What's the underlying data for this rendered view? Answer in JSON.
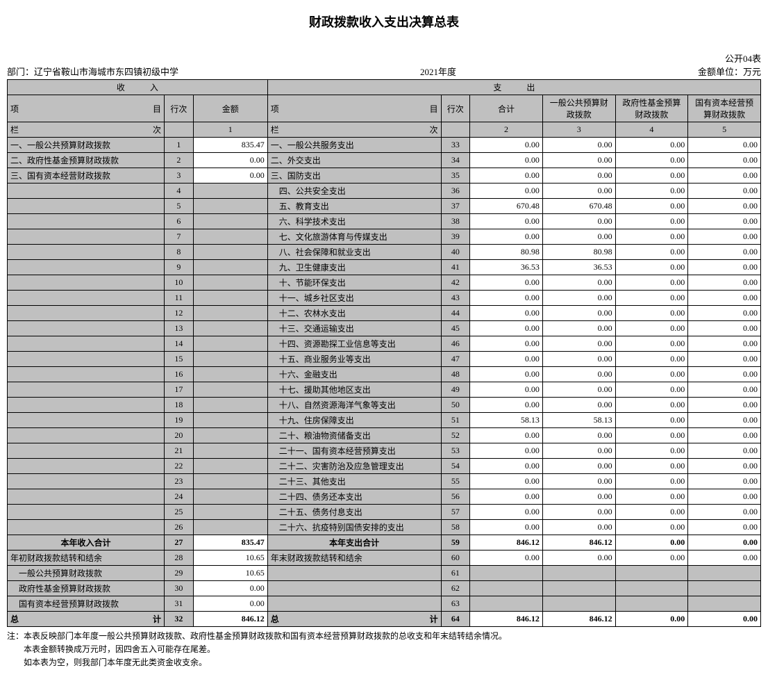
{
  "title": "财政拨款收入支出决算总表",
  "form_no": "公开04表",
  "dept_label": "部门：",
  "dept": "辽宁省鞍山市海城市东四镇初级中学",
  "year": "2021年度",
  "unit": "金额单位：万元",
  "headers": {
    "income": "收　　　入",
    "expense": "支　　　出",
    "item": "项　　　　　　　　目",
    "row": "行次",
    "amount": "金额",
    "total": "合计",
    "col3": "一般公共预算财政拨款",
    "col4": "政府性基金预算财政拨款",
    "col5": "国有资本经营预算财政拨款",
    "lan_l": "栏　　　　　　　　次",
    "lan_r": "栏　　　　　　　　次",
    "c1": "1",
    "c2": "2",
    "c3": "3",
    "c4": "4",
    "c5": "5"
  },
  "rows": [
    {
      "inc": "一、一般公共预算财政拨款",
      "irow": "1",
      "amt": "835.47",
      "exp": "一、一般公共服务支出",
      "erow": "33",
      "v": [
        "0.00",
        "0.00",
        "0.00",
        "0.00"
      ],
      "ig": true,
      "eg": true
    },
    {
      "inc": "二、政府性基金预算财政拨款",
      "irow": "2",
      "amt": "0.00",
      "exp": "二、外交支出",
      "erow": "34",
      "v": [
        "0.00",
        "0.00",
        "0.00",
        "0.00"
      ],
      "ig": true,
      "eg": true
    },
    {
      "inc": "三、国有资本经营财政拨款",
      "irow": "3",
      "amt": "0.00",
      "exp": "三、国防支出",
      "erow": "35",
      "v": [
        "0.00",
        "0.00",
        "0.00",
        "0.00"
      ],
      "ig": true,
      "eg": true
    },
    {
      "inc": "",
      "irow": "4",
      "amt": "",
      "exp": "　四、公共安全支出",
      "erow": "36",
      "v": [
        "0.00",
        "0.00",
        "0.00",
        "0.00"
      ],
      "ig": true,
      "eg": true
    },
    {
      "inc": "",
      "irow": "5",
      "amt": "",
      "exp": "　五、教育支出",
      "erow": "37",
      "v": [
        "670.48",
        "670.48",
        "0.00",
        "0.00"
      ],
      "ig": true,
      "eg": true
    },
    {
      "inc": "",
      "irow": "6",
      "amt": "",
      "exp": "　六、科学技术支出",
      "erow": "38",
      "v": [
        "0.00",
        "0.00",
        "0.00",
        "0.00"
      ],
      "ig": true,
      "eg": true
    },
    {
      "inc": "",
      "irow": "7",
      "amt": "",
      "exp": "　七、文化旅游体育与传媒支出",
      "erow": "39",
      "v": [
        "0.00",
        "0.00",
        "0.00",
        "0.00"
      ],
      "ig": true,
      "eg": true
    },
    {
      "inc": "",
      "irow": "8",
      "amt": "",
      "exp": "　八、社会保障和就业支出",
      "erow": "40",
      "v": [
        "80.98",
        "80.98",
        "0.00",
        "0.00"
      ],
      "ig": true,
      "eg": true
    },
    {
      "inc": "",
      "irow": "9",
      "amt": "",
      "exp": "　九、卫生健康支出",
      "erow": "41",
      "v": [
        "36.53",
        "36.53",
        "0.00",
        "0.00"
      ],
      "ig": true,
      "eg": true
    },
    {
      "inc": "",
      "irow": "10",
      "amt": "",
      "exp": "　十、节能环保支出",
      "erow": "42",
      "v": [
        "0.00",
        "0.00",
        "0.00",
        "0.00"
      ],
      "ig": true,
      "eg": true
    },
    {
      "inc": "",
      "irow": "11",
      "amt": "",
      "exp": "　十一、城乡社区支出",
      "erow": "43",
      "v": [
        "0.00",
        "0.00",
        "0.00",
        "0.00"
      ],
      "ig": true,
      "eg": true
    },
    {
      "inc": "",
      "irow": "12",
      "amt": "",
      "exp": "　十二、农林水支出",
      "erow": "44",
      "v": [
        "0.00",
        "0.00",
        "0.00",
        "0.00"
      ],
      "ig": true,
      "eg": true
    },
    {
      "inc": "",
      "irow": "13",
      "amt": "",
      "exp": "　十三、交通运输支出",
      "erow": "45",
      "v": [
        "0.00",
        "0.00",
        "0.00",
        "0.00"
      ],
      "ig": true,
      "eg": true
    },
    {
      "inc": "",
      "irow": "14",
      "amt": "",
      "exp": "　十四、资源勘探工业信息等支出",
      "erow": "46",
      "v": [
        "0.00",
        "0.00",
        "0.00",
        "0.00"
      ],
      "ig": true,
      "eg": true
    },
    {
      "inc": "",
      "irow": "15",
      "amt": "",
      "exp": "　十五、商业服务业等支出",
      "erow": "47",
      "v": [
        "0.00",
        "0.00",
        "0.00",
        "0.00"
      ],
      "ig": true,
      "eg": true
    },
    {
      "inc": "",
      "irow": "16",
      "amt": "",
      "exp": "　十六、金融支出",
      "erow": "48",
      "v": [
        "0.00",
        "0.00",
        "0.00",
        "0.00"
      ],
      "ig": true,
      "eg": true
    },
    {
      "inc": "",
      "irow": "17",
      "amt": "",
      "exp": "　十七、援助其他地区支出",
      "erow": "49",
      "v": [
        "0.00",
        "0.00",
        "0.00",
        "0.00"
      ],
      "ig": true,
      "eg": true
    },
    {
      "inc": "",
      "irow": "18",
      "amt": "",
      "exp": "　十八、自然资源海洋气象等支出",
      "erow": "50",
      "v": [
        "0.00",
        "0.00",
        "0.00",
        "0.00"
      ],
      "ig": true,
      "eg": true
    },
    {
      "inc": "",
      "irow": "19",
      "amt": "",
      "exp": "　十九、住房保障支出",
      "erow": "51",
      "v": [
        "58.13",
        "58.13",
        "0.00",
        "0.00"
      ],
      "ig": true,
      "eg": true
    },
    {
      "inc": "",
      "irow": "20",
      "amt": "",
      "exp": "　二十、粮油物资储备支出",
      "erow": "52",
      "v": [
        "0.00",
        "0.00",
        "0.00",
        "0.00"
      ],
      "ig": true,
      "eg": true
    },
    {
      "inc": "",
      "irow": "21",
      "amt": "",
      "exp": "　二十一、国有资本经营预算支出",
      "erow": "53",
      "v": [
        "0.00",
        "0.00",
        "0.00",
        "0.00"
      ],
      "ig": true,
      "eg": true
    },
    {
      "inc": "",
      "irow": "22",
      "amt": "",
      "exp": "　二十二、灾害防治及应急管理支出",
      "erow": "54",
      "v": [
        "0.00",
        "0.00",
        "0.00",
        "0.00"
      ],
      "ig": true,
      "eg": true
    },
    {
      "inc": "",
      "irow": "23",
      "amt": "",
      "exp": "　二十三、其他支出",
      "erow": "55",
      "v": [
        "0.00",
        "0.00",
        "0.00",
        "0.00"
      ],
      "ig": true,
      "eg": true
    },
    {
      "inc": "",
      "irow": "24",
      "amt": "",
      "exp": "　二十四、债务还本支出",
      "erow": "56",
      "v": [
        "0.00",
        "0.00",
        "0.00",
        "0.00"
      ],
      "ig": true,
      "eg": true
    },
    {
      "inc": "",
      "irow": "25",
      "amt": "",
      "exp": "　二十五、债务付息支出",
      "erow": "57",
      "v": [
        "0.00",
        "0.00",
        "0.00",
        "0.00"
      ],
      "ig": true,
      "eg": true
    },
    {
      "inc": "",
      "irow": "26",
      "amt": "",
      "exp": "　二十六、抗疫特别国债安排的支出",
      "erow": "58",
      "v": [
        "0.00",
        "0.00",
        "0.00",
        "0.00"
      ],
      "ig": true,
      "eg": true
    },
    {
      "inc": "本年收入合计",
      "irow": "27",
      "amt": "835.47",
      "exp": "本年支出合计",
      "erow": "59",
      "v": [
        "846.12",
        "846.12",
        "0.00",
        "0.00"
      ],
      "ig": true,
      "eg": true,
      "inc_c": true,
      "exp_c": true,
      "bold": true
    },
    {
      "inc": "年初财政拨款结转和结余",
      "irow": "28",
      "amt": "10.65",
      "exp": "年末财政拨款结转和结余",
      "erow": "60",
      "v": [
        "0.00",
        "0.00",
        "0.00",
        "0.00"
      ],
      "ig": true,
      "eg": true
    },
    {
      "inc": "　一般公共预算财政拨款",
      "irow": "29",
      "amt": "10.65",
      "exp": "",
      "erow": "61",
      "v": [
        "",
        "",
        "",
        ""
      ],
      "ig": true,
      "eg": true,
      "vgray": true
    },
    {
      "inc": "　政府性基金预算财政拨款",
      "irow": "30",
      "amt": "0.00",
      "exp": "",
      "erow": "62",
      "v": [
        "",
        "",
        "",
        ""
      ],
      "ig": true,
      "eg": true,
      "vgray": true
    },
    {
      "inc": "　国有资本经营预算财政拨款",
      "irow": "31",
      "amt": "0.00",
      "exp": "",
      "erow": "63",
      "v": [
        "",
        "",
        "",
        ""
      ],
      "ig": true,
      "eg": true,
      "vgray": true
    },
    {
      "inc": "总　　　　　　　　计",
      "irow": "32",
      "amt": "846.12",
      "exp": "总　　　　　　　　计",
      "erow": "64",
      "v": [
        "846.12",
        "846.12",
        "0.00",
        "0.00"
      ],
      "ig": true,
      "eg": true,
      "inc_c": false,
      "exp_c": false,
      "bold": true,
      "spread": true
    }
  ],
  "notes": [
    "注：本表反映部门本年度一般公共预算财政拨款、政府性基金预算财政拨款和国有资本经营预算财政拨款的总收支和年末结转结余情况。",
    "　　本表金额转换成万元时，因四舍五入可能存在尾差。",
    "　　如本表为空，则我部门本年度无此类资金收支余。"
  ],
  "colors": {
    "header_bg": "#c0c0c0",
    "border": "#000000",
    "bg": "#ffffff",
    "text": "#000000"
  }
}
